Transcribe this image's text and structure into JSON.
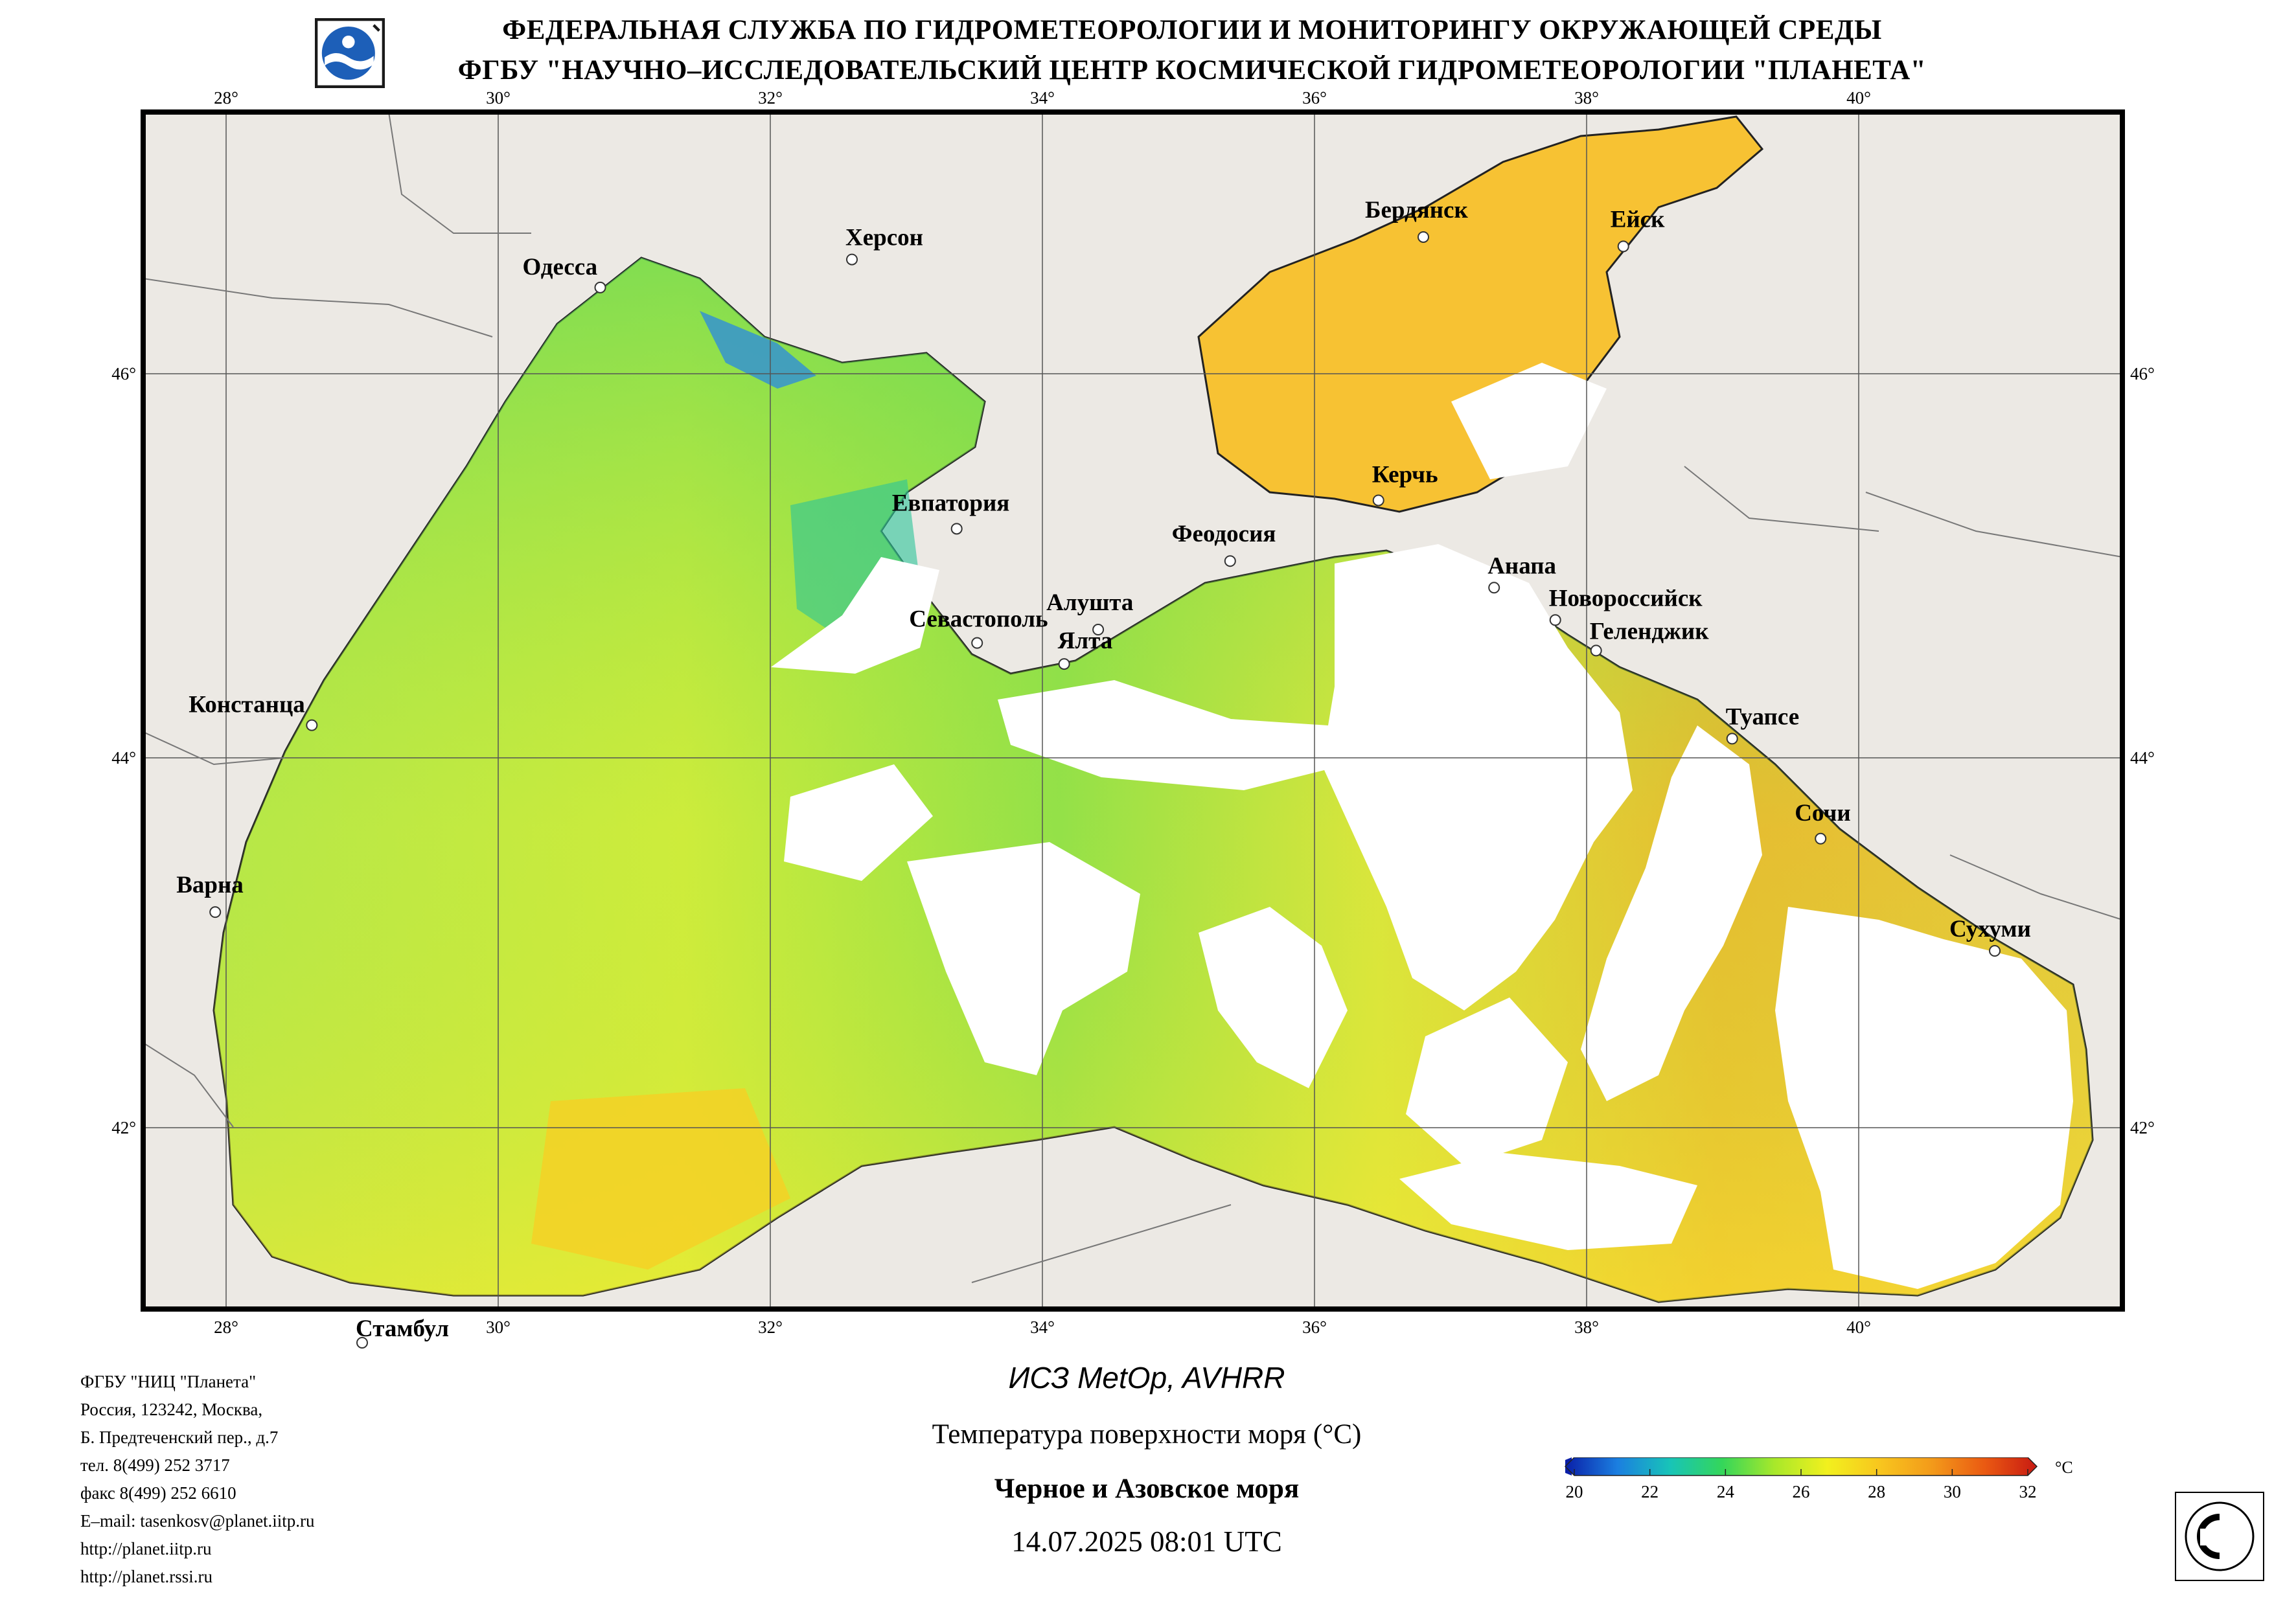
{
  "header": {
    "line1": "ФЕДЕРАЛЬНАЯ СЛУЖБА ПО ГИДРОМЕТЕОРОЛОГИИ И МОНИТОРИНГУ ОКРУЖАЮЩЕЙ СРЕДЫ",
    "line2": "ФГБУ \"НАУЧНО–ИССЛЕДОВАТЕЛЬСКИЙ ЦЕНТР КОСМИЧЕСКОЙ ГИДРОМЕТЕОРОЛОГИИ \"ПЛАНЕТА\""
  },
  "map": {
    "lon_ticks": [
      "28°",
      "30°",
      "32°",
      "34°",
      "36°",
      "38°",
      "40°"
    ],
    "lat_ticks": [
      "46°",
      "44°",
      "42°"
    ],
    "cities": [
      {
        "name": "Одесса",
        "lon": 30.75,
        "lat": 46.48
      },
      {
        "name": "Херсон",
        "lon": 32.6,
        "lat": 46.63
      },
      {
        "name": "Бердянск",
        "lon": 36.8,
        "lat": 46.75
      },
      {
        "name": "Ейск",
        "lon": 38.27,
        "lat": 46.7
      },
      {
        "name": "Евпатория",
        "lon": 33.37,
        "lat": 45.2
      },
      {
        "name": "Керчь",
        "lon": 36.47,
        "lat": 45.35
      },
      {
        "name": "Феодосия",
        "lon": 35.38,
        "lat": 45.03
      },
      {
        "name": "Анапа",
        "lon": 37.32,
        "lat": 44.89
      },
      {
        "name": "Новороссийск",
        "lon": 37.77,
        "lat": 44.72
      },
      {
        "name": "Геленджик",
        "lon": 38.07,
        "lat": 44.56
      },
      {
        "name": "Алушта",
        "lon": 34.41,
        "lat": 44.67
      },
      {
        "name": "Севастополь",
        "lon": 33.52,
        "lat": 44.6
      },
      {
        "name": "Ялта",
        "lon": 34.16,
        "lat": 44.49
      },
      {
        "name": "Констанца",
        "lon": 28.63,
        "lat": 44.17
      },
      {
        "name": "Туапсе",
        "lon": 39.07,
        "lat": 44.1
      },
      {
        "name": "Сочи",
        "lon": 39.72,
        "lat": 43.58
      },
      {
        "name": "Варна",
        "lon": 27.92,
        "lat": 43.2
      },
      {
        "name": "Сухуми",
        "lon": 41.0,
        "lat": 43.0
      },
      {
        "name": "Стамбул",
        "lon": 29.0,
        "lat": 41.0
      }
    ]
  },
  "footer_info": [
    "ФГБУ \"НИЦ \"Планета\"",
    "Россия, 123242, Москва,",
    "Б. Предтеченский пер., д.7",
    "тел. 8(499) 252 3717",
    "факс 8(499) 252 6610",
    "E–mail: tasenkosv@planet.iitp.ru",
    "http://planet.iitp.ru",
    "http://planet.rssi.ru"
  ],
  "caption": {
    "satellite": "ИСЗ MetOp, AVHRR",
    "parameter": "Температура поверхности моря (°C)",
    "region": "Черное и Азовское моря",
    "datetime": "14.07.2025 08:01 UTC"
  },
  "colorbar": {
    "unit": "°C",
    "ticks": [
      "20",
      "22",
      "24",
      "26",
      "28",
      "30",
      "32"
    ],
    "min": 20,
    "max": 32,
    "colors": [
      "#0a1fa8",
      "#1b7fe0",
      "#18c4b8",
      "#34d65a",
      "#a8e82a",
      "#f2f01e",
      "#f8c61e",
      "#f39a1a",
      "#ea5a12",
      "#c81a12"
    ]
  },
  "colors": {
    "land": "#ece9e4",
    "cloud": "#ffffff",
    "grid": "#555555"
  }
}
